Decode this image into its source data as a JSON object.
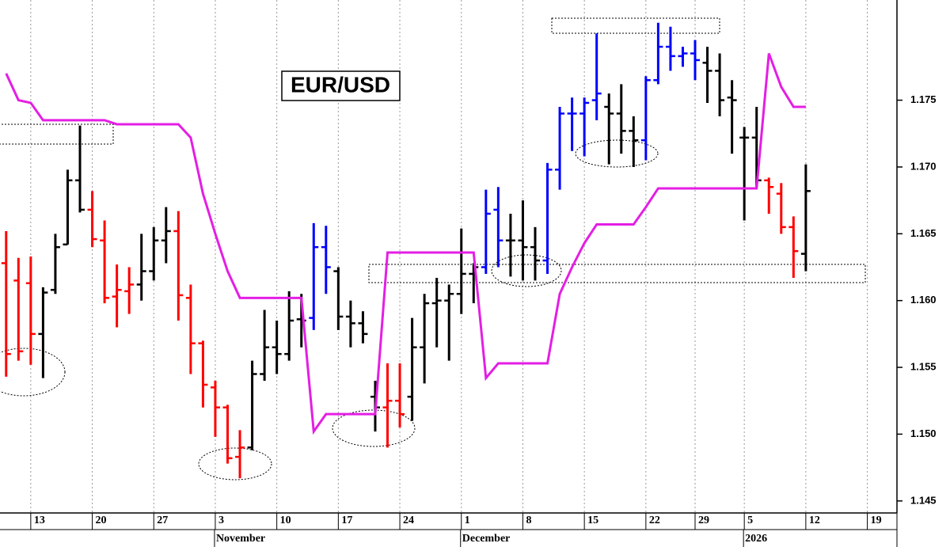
{
  "chart_data": {
    "type": "ohlc",
    "title": "EUR/USD",
    "categories": [
      null,
      null,
      "13",
      null,
      null,
      null,
      null,
      "20",
      null,
      null,
      null,
      null,
      "27",
      null,
      null,
      null,
      null,
      "3",
      null,
      null,
      null,
      null,
      "10",
      null,
      null,
      null,
      null,
      "17",
      null,
      null,
      null,
      null,
      "24",
      null,
      null,
      null,
      null,
      "1",
      null,
      null,
      null,
      null,
      "8",
      null,
      null,
      null,
      null,
      "15",
      null,
      null,
      null,
      null,
      "22",
      null,
      null,
      null,
      "29",
      null,
      null,
      null,
      "5",
      null,
      null,
      null,
      null,
      "12",
      null,
      null,
      null,
      null,
      "19",
      null,
      null
    ],
    "x_groups": [
      {
        "label": "November",
        "start": 17
      },
      {
        "label": "December",
        "start": 37
      },
      {
        "label": "2026",
        "start": 60
      }
    ],
    "open": [
      1.1628,
      1.1615,
      1.1613,
      1.1575,
      1.1608,
      1.1642,
      1.169,
      1.1668,
      1.1645,
      1.1603,
      1.1607,
      1.1612,
      1.1622,
      1.1645,
      1.1652,
      1.1602,
      1.1568,
      1.1535,
      1.152,
      1.1483,
      1.149,
      1.1545,
      1.1565,
      1.156,
      1.1586,
      1.1587,
      1.164,
      1.1622,
      1.1588,
      1.1583,
      1.1528,
      1.152,
      1.1525,
      1.1528,
      1.1565,
      1.1598,
      1.16,
      1.1605,
      1.162,
      1.1625,
      1.1668,
      1.1645,
      1.1645,
      1.164,
      1.163,
      1.1698,
      1.174,
      1.174,
      1.175,
      1.1745,
      1.174,
      1.1727,
      1.172,
      1.1765,
      1.179,
      1.1783,
      1.1785,
      1.1778,
      1.1772,
      1.1752,
      1.1722,
      1.1722,
      1.169,
      1.168,
      1.1655,
      1.1635,
      null,
      null,
      null,
      null,
      null,
      null,
      null
    ],
    "high": [
      1.1652,
      1.1632,
      1.1633,
      1.161,
      1.165,
      1.1698,
      1.1731,
      1.1682,
      1.166,
      1.1627,
      1.1625,
      1.165,
      1.1655,
      1.167,
      1.1667,
      1.1612,
      1.157,
      1.154,
      1.1522,
      1.1503,
      1.1555,
      1.1593,
      1.1585,
      1.1607,
      1.1605,
      1.1658,
      1.1656,
      1.1625,
      1.16,
      1.1592,
      1.154,
      1.1553,
      1.1553,
      1.1587,
      1.1605,
      1.1617,
      1.1612,
      1.1654,
      1.1628,
      1.1683,
      1.1685,
      1.1665,
      1.1675,
      1.1655,
      1.1703,
      1.1745,
      1.1752,
      1.1752,
      1.18,
      1.1755,
      1.1762,
      1.1738,
      1.1768,
      1.1808,
      1.1805,
      1.179,
      1.1795,
      1.179,
      1.1785,
      1.1765,
      1.173,
      1.1745,
      1.1692,
      1.1688,
      1.1663,
      1.1702,
      null,
      null,
      null,
      null,
      null,
      null,
      null
    ],
    "low": [
      1.1543,
      1.1555,
      1.1552,
      1.1542,
      1.1605,
      1.1642,
      1.1666,
      1.164,
      1.1598,
      1.158,
      1.159,
      1.16,
      1.1615,
      1.1628,
      1.1585,
      1.1545,
      1.152,
      1.1498,
      1.1478,
      1.1467,
      1.1488,
      1.154,
      1.1545,
      1.1555,
      1.1565,
      1.1578,
      1.1605,
      1.1578,
      1.1565,
      1.1568,
      1.1502,
      1.149,
      1.1505,
      1.151,
      1.1538,
      1.1565,
      1.1555,
      1.159,
      1.1598,
      1.162,
      1.1625,
      1.1618,
      1.1615,
      1.1615,
      1.162,
      1.1683,
      1.1712,
      1.1708,
      1.1735,
      1.1702,
      1.171,
      1.17,
      1.1705,
      1.1762,
      1.1772,
      1.1775,
      1.1765,
      1.1748,
      1.1738,
      1.171,
      1.166,
      1.1685,
      1.1665,
      1.165,
      1.1617,
      1.1622,
      null,
      null,
      null,
      null,
      null,
      null,
      null
    ],
    "close": [
      1.156,
      1.1562,
      1.1575,
      1.1606,
      1.164,
      1.169,
      1.1668,
      1.1646,
      1.1602,
      1.1608,
      1.1612,
      1.1622,
      1.1645,
      1.1652,
      1.1604,
      1.1568,
      1.1537,
      1.152,
      1.1482,
      1.149,
      1.1545,
      1.1565,
      1.156,
      1.1585,
      1.1585,
      1.164,
      1.1625,
      1.1588,
      1.1583,
      1.1575,
      1.152,
      1.1525,
      1.1515,
      1.1565,
      1.1598,
      1.16,
      1.1605,
      1.162,
      1.1625,
      1.1665,
      1.1645,
      1.1645,
      1.164,
      1.163,
      1.1698,
      1.174,
      1.174,
      1.1748,
      1.1755,
      1.174,
      1.1727,
      1.172,
      1.1765,
      1.179,
      1.1783,
      1.1785,
      1.178,
      1.1772,
      1.175,
      1.175,
      1.1722,
      1.169,
      1.1685,
      1.1655,
      1.1637,
      1.1682,
      null,
      null,
      null,
      null,
      null,
      null,
      null
    ],
    "bar_colors": [
      "#ff0000",
      "#ff0000",
      "#ff0000",
      "#000000",
      "#000000",
      "#000000",
      "#000000",
      "#ff0000",
      "#ff0000",
      "#ff0000",
      "#ff0000",
      "#000000",
      "#000000",
      "#000000",
      "#ff0000",
      "#ff0000",
      "#ff0000",
      "#ff0000",
      "#ff0000",
      "#ff0000",
      "#000000",
      "#000000",
      "#000000",
      "#000000",
      "#000000",
      "#0000ff",
      "#0000ff",
      "#000000",
      "#000000",
      "#000000",
      "#000000",
      "#ff0000",
      "#ff0000",
      "#000000",
      "#000000",
      "#000000",
      "#000000",
      "#000000",
      "#000000",
      "#0000ff",
      "#0000ff",
      "#000000",
      "#000000",
      "#000000",
      "#0000ff",
      "#0000ff",
      "#0000ff",
      "#0000ff",
      "#0000ff",
      "#000000",
      "#000000",
      "#000000",
      "#0000ff",
      "#0000ff",
      "#0000ff",
      "#0000ff",
      "#0000ff",
      "#000000",
      "#000000",
      "#000000",
      "#000000",
      "#000000",
      "#ff0000",
      "#ff0000",
      "#ff0000",
      "#000000",
      null,
      null,
      null,
      null,
      null,
      null,
      null
    ],
    "line": {
      "color": "#e41ee4",
      "values": [
        1.177,
        1.175,
        1.1748,
        1.1735,
        1.1735,
        1.1735,
        1.1735,
        1.1735,
        1.1735,
        1.1732,
        1.1732,
        1.1732,
        1.1732,
        1.1732,
        1.1732,
        1.1722,
        1.168,
        1.165,
        1.1622,
        1.1602,
        1.1602,
        1.1602,
        1.1602,
        1.1602,
        1.1602,
        1.1502,
        1.1515,
        1.1515,
        1.1515,
        1.1515,
        1.1515,
        1.1636,
        1.1636,
        1.1636,
        1.1636,
        1.1636,
        1.1636,
        1.1636,
        1.1636,
        1.1542,
        1.1553,
        1.1553,
        1.1553,
        1.1553,
        1.1553,
        1.1605,
        1.1625,
        1.1643,
        1.1657,
        1.1657,
        1.1657,
        1.1657,
        1.167,
        1.1684,
        1.1684,
        1.1684,
        1.1684,
        1.1684,
        1.1684,
        1.1684,
        1.1684,
        1.1684,
        1.1785,
        1.176,
        1.1745,
        1.1745,
        null,
        null,
        null,
        null,
        null,
        null,
        null
      ]
    },
    "ylim": [
      1.1441,
      1.1825
    ],
    "yticks": [
      1.145,
      {
        "value": 1.15,
        "label": "1.150"
      },
      1.155,
      {
        "value": 1.16,
        "label": "1.160"
      },
      1.165,
      {
        "value": 1.17,
        "label": "1.170"
      },
      1.175
    ],
    "vgrid": true
  }
}
